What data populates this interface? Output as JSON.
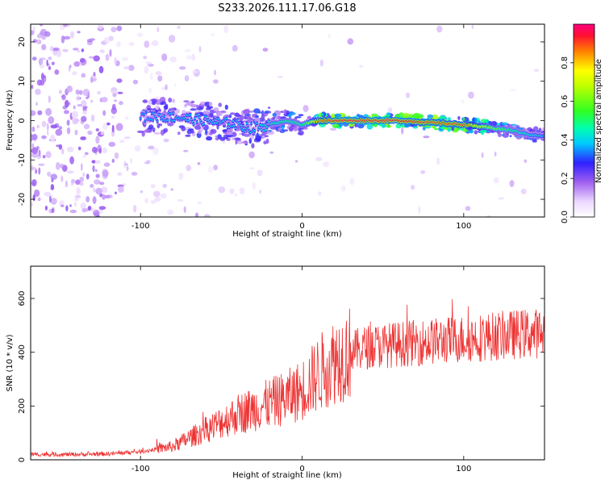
{
  "title": "S233.2026.111.17.06.G18",
  "chart_data": [
    {
      "type": "heatmap",
      "title": "S233.2026.111.17.06.G18",
      "xlabel": "Height of straight line (km)",
      "ylabel": "Frequency (Hz)",
      "xlim": [
        -168,
        150
      ],
      "ylim": [
        -24.5,
        24.5
      ],
      "x_ticks": [
        -100,
        0,
        100
      ],
      "y_ticks": [
        -20,
        -10,
        0,
        10,
        20
      ],
      "colorbar": {
        "label": "Normalized spectral amplitude",
        "range": [
          0,
          1
        ],
        "ticks": [
          0.0,
          0.2,
          0.4,
          0.6,
          0.8
        ]
      },
      "ridge": {
        "description": "peak frequency trace vs height",
        "x": [
          -100,
          -80,
          -60,
          -40,
          -30,
          -20,
          -10,
          0,
          10,
          20,
          40,
          60,
          80,
          100,
          110,
          120,
          130,
          140,
          150
        ],
        "freq": [
          1,
          1,
          0,
          -1,
          -2,
          -1,
          0,
          -1,
          0,
          0,
          0,
          0,
          -0.5,
          -1,
          -1.5,
          -2,
          -2.5,
          -3.5,
          -4
        ],
        "amplitude": [
          0.35,
          0.4,
          0.4,
          0.4,
          0.4,
          0.45,
          0.5,
          0.5,
          0.85,
          0.95,
          0.95,
          0.95,
          0.9,
          0.9,
          0.7,
          0.6,
          0.5,
          0.45,
          0.4
        ]
      }
    },
    {
      "type": "line",
      "xlabel": "Height of straight line (km)",
      "ylabel": "SNR (10 * v/v)",
      "xlim": [
        -168,
        150
      ],
      "ylim": [
        0,
        720
      ],
      "x_ticks": [
        -100,
        0,
        100
      ],
      "y_ticks": [
        0,
        200,
        400,
        600
      ],
      "series": [
        {
          "name": "SNR",
          "color": "#ee3333",
          "x": [
            -168,
            -140,
            -120,
            -100,
            -80,
            -70,
            -60,
            -50,
            -40,
            -30,
            -20,
            -10,
            0,
            10,
            20,
            30,
            40,
            60,
            80,
            100,
            120,
            140,
            150
          ],
          "values": [
            20,
            20,
            22,
            30,
            50,
            80,
            110,
            140,
            170,
            190,
            210,
            230,
            260,
            320,
            370,
            400,
            420,
            430,
            440,
            450,
            460,
            470,
            470
          ]
        }
      ]
    }
  ]
}
